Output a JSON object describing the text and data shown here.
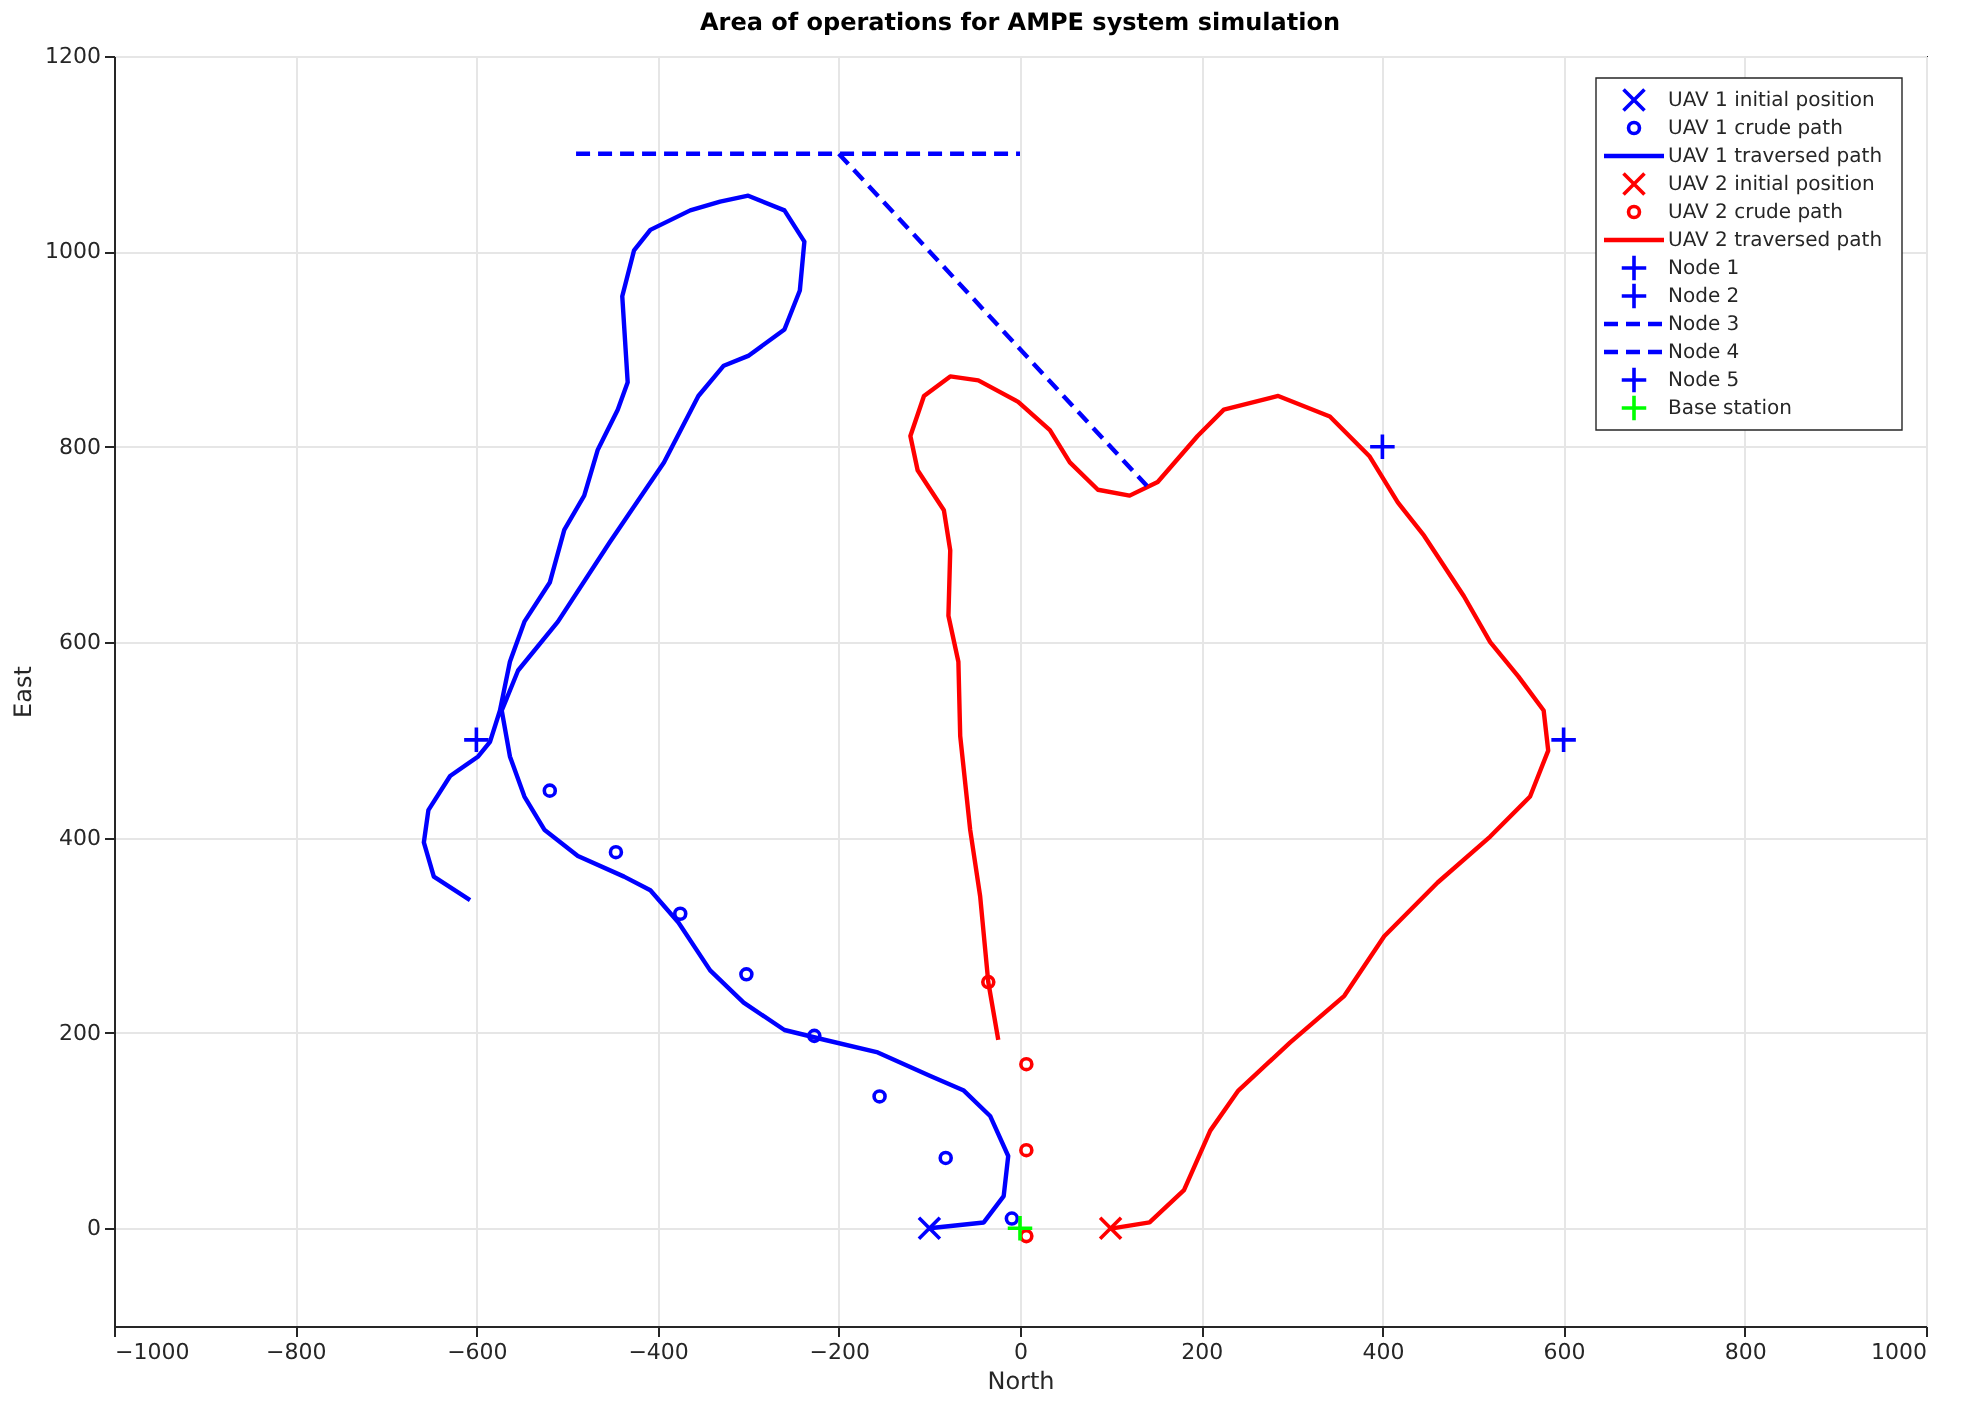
{
  "chart_data": {
    "type": "line",
    "title": "Area of operations for AMPE system simulation",
    "xlabel": "North",
    "ylabel": "East",
    "xlim": [
      -1000,
      1000
    ],
    "ylim": [
      -100,
      1200
    ],
    "xticks": [
      -1000,
      -800,
      -600,
      -400,
      -200,
      0,
      200,
      400,
      600,
      800,
      1000
    ],
    "yticks": [
      0,
      200,
      400,
      600,
      800,
      1000,
      1200
    ],
    "grid": true,
    "legend": "top right",
    "series": [
      {
        "name": "UAV 1 initial position",
        "type": "scatter",
        "marker": "x",
        "color": "#0000ff",
        "x": [
          -100
        ],
        "values": [
          0
        ]
      },
      {
        "name": "UAV 1 crude path",
        "type": "scatter",
        "marker": "circle",
        "color": "#0000ff",
        "x": [
          -519,
          -446,
          -375,
          -302,
          -227,
          -155,
          -82,
          -9
        ],
        "values": [
          448,
          385,
          322,
          260,
          197,
          135,
          72,
          10
        ]
      },
      {
        "name": "UAV 1 traversed path",
        "type": "line",
        "marker": "none",
        "line_style": "solid",
        "color": "#0000ff",
        "x": [
          -100,
          -40,
          -18,
          -13,
          -33,
          -62,
          -99,
          -157,
          -216,
          -260,
          -305,
          -342,
          -377,
          -408,
          -437,
          -488,
          -525,
          -547,
          -563,
          -572,
          -554,
          -510,
          -453,
          -393,
          -355,
          -327,
          -300,
          -260,
          -243,
          -238,
          -260,
          -300,
          -331,
          -364,
          -408,
          -426,
          -439,
          -433,
          -444,
          -466,
          -481,
          -503,
          -519,
          -547,
          -563,
          -574,
          -585,
          -598,
          -629,
          -653,
          -658,
          -647,
          -607
        ],
        "values": [
          0,
          6,
          33,
          74,
          115,
          141,
          156,
          180,
          193,
          203,
          231,
          264,
          313,
          346,
          360,
          381,
          408,
          442,
          483,
          530,
          571,
          621,
          702,
          784,
          852,
          883,
          893,
          920,
          960,
          1010,
          1042,
          1057,
          1051,
          1042,
          1022,
          1001,
          954,
          866,
          838,
          797,
          750,
          715,
          661,
          621,
          580,
          530,
          498,
          483,
          463,
          428,
          395,
          360,
          336
        ]
      },
      {
        "name": "UAV 2 initial position",
        "type": "scatter",
        "marker": "x",
        "color": "#ff0000",
        "x": [
          100
        ],
        "values": [
          0
        ]
      },
      {
        "name": "UAV 2 crude path",
        "type": "scatter",
        "marker": "circle",
        "color": "#ff0000",
        "x": [
          -35,
          7,
          7,
          7
        ],
        "values": [
          252,
          168,
          80,
          -8
        ]
      },
      {
        "name": "UAV 2 traversed path",
        "type": "line",
        "marker": "none",
        "line_style": "solid",
        "color": "#ff0000",
        "x": [
          102,
          143,
          181,
          210,
          241,
          298,
          358,
          402,
          461,
          519,
          563,
          583,
          578,
          550,
          519,
          490,
          446,
          417,
          386,
          342,
          285,
          225,
          196,
          152,
          121,
          86,
          55,
          33,
          -2,
          -46,
          -77,
          -106,
          -121,
          -113,
          -84,
          -77,
          -79,
          -68,
          -66,
          -55,
          -44,
          -35,
          -24
        ],
        "values": [
          0,
          6,
          39,
          100,
          141,
          190,
          238,
          299,
          354,
          401,
          442,
          489,
          530,
          565,
          600,
          647,
          709,
          743,
          790,
          831,
          852,
          838,
          811,
          764,
          750,
          756,
          784,
          817,
          846,
          868,
          872,
          852,
          811,
          776,
          735,
          694,
          627,
          580,
          504,
          408,
          340,
          252,
          193
        ]
      },
      {
        "name": "Node 1",
        "type": "scatter",
        "marker": "cross",
        "color": "#0000ff",
        "x": [
          400
        ],
        "values": [
          800
        ]
      },
      {
        "name": "Node 2",
        "type": "scatter",
        "marker": "cross",
        "color": "#0000ff",
        "x": [
          600
        ],
        "values": [
          500
        ]
      },
      {
        "name": "Node 3",
        "type": "line",
        "marker": "none",
        "line_style": "dashed",
        "color": "#0000ff",
        "x": [
          -490,
          0
        ],
        "values": [
          1100,
          1100
        ]
      },
      {
        "name": "Node 4",
        "type": "line",
        "marker": "none",
        "line_style": "dashed",
        "color": "#0000ff",
        "x": [
          -200,
          140
        ],
        "values": [
          1100,
          760
        ]
      },
      {
        "name": "Node 5",
        "type": "scatter",
        "marker": "cross",
        "color": "#0000ff",
        "x": [
          -600
        ],
        "values": [
          500
        ]
      },
      {
        "name": "Base station",
        "type": "scatter",
        "marker": "cross",
        "color": "#00ff00",
        "x": [
          0
        ],
        "values": [
          0
        ]
      }
    ]
  }
}
